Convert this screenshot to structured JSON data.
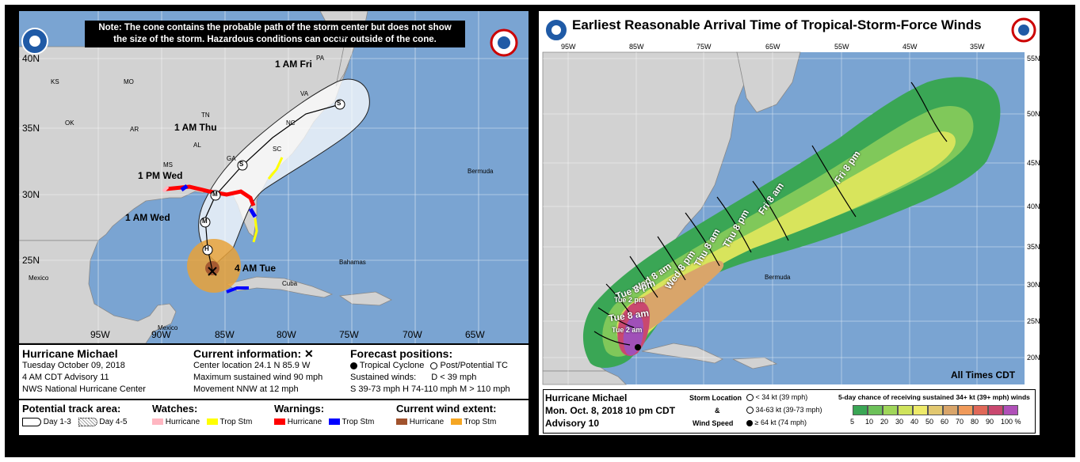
{
  "left": {
    "note_line1": "Note: The cone contains the probable path of the storm center but does not show",
    "note_line2": "the size of the storm. Hazardous conditions can occur outside of the cone.",
    "lat_labels": [
      "40N",
      "35N",
      "30N",
      "25N"
    ],
    "lon_labels": [
      "95W",
      "90W",
      "85W",
      "80W",
      "75W",
      "70W",
      "65W"
    ],
    "states": [
      "KS",
      "MO",
      "OK",
      "AR",
      "TN",
      "AL",
      "MS",
      "GA",
      "NC",
      "SC",
      "VA",
      "PA",
      "NY"
    ],
    "places": [
      "Bermuda",
      "Bahamas",
      "Cuba",
      "Mexico",
      "Mexico"
    ],
    "track_times": [
      "1 AM Fri",
      "1 AM Thu",
      "1 PM Wed",
      "1 AM Wed",
      "4 AM Tue"
    ],
    "track_markers": [
      "S",
      "S",
      "M",
      "M",
      "H"
    ],
    "storm_name": "Hurricane Michael",
    "date": "Tuesday October 09, 2018",
    "advisory": "4 AM CDT Advisory 11",
    "center": "NWS National Hurricane Center",
    "current_title": "Current information: ✕",
    "current_lines": [
      "Center location 24.1 N 85.9 W",
      "Maximum sustained wind 90 mph",
      "Movement NNW at 12 mph"
    ],
    "forecast_title": "Forecast positions:",
    "forecast_tc": "Tropical Cyclone",
    "forecast_post": "Post/Potential TC",
    "forecast_sustained": "Sustained winds:",
    "forecast_d": "D < 39 mph",
    "forecast_scale": "S 39-73 mph  H 74-110 mph  M > 110 mph",
    "track_area_title": "Potential track area:",
    "day13": "Day 1-3",
    "day45": "Day 4-5",
    "watches_title": "Watches:",
    "warnings_title": "Warnings:",
    "wind_title": "Current wind extent:",
    "hurricane": "Hurricane",
    "trop_stm": "Trop Stm",
    "colors": {
      "hurricane_warning": "#ff0000",
      "ts_warning": "#0000ff",
      "hurricane_watch": "#ffb6c1",
      "ts_watch": "#ffff00",
      "hurricane_wind": "#a0522d",
      "ts_wind": "#f5a623",
      "water": "#7aa4d2",
      "land": "#d2d2d2"
    }
  },
  "right": {
    "title": "Earliest Reasonable Arrival Time of Tropical-Storm-Force Winds",
    "lat_labels": [
      "55N",
      "50N",
      "45N",
      "40N",
      "35N",
      "30N",
      "25N",
      "20N"
    ],
    "lon_labels": [
      "95W",
      "85W",
      "75W",
      "65W",
      "55W",
      "45W",
      "35W"
    ],
    "time_labels": [
      "Fri 8 pm",
      "Fri 8 am",
      "Thu 8 pm",
      "Thu 8 am",
      "Wed 8 pm",
      "Wed 8 am",
      "Tue 8 pm",
      "Tue 2 pm",
      "Tue 8 am",
      "Tue 2 am"
    ],
    "places": [
      "Bermuda"
    ],
    "all_times": "All Times CDT",
    "storm_name": "Hurricane Michael",
    "date": "Mon. Oct. 8, 2018  10 pm CDT",
    "advisory": "Advisory 10",
    "storm_location": "Storm Location",
    "amp": "&",
    "wind_speed": "Wind Speed",
    "speed1": "< 34 kt (39 mph)",
    "speed2": "34-63 kt (39-73 mph)",
    "speed3": "≥ 64 kt (74 mph)",
    "chance_title": "5-day chance of receiving sustained 34+ kt (39+ mph) winds",
    "scale_labels": [
      "5",
      "10",
      "20",
      "30",
      "40",
      "50",
      "60",
      "70",
      "80",
      "90",
      "100 %"
    ],
    "scale_colors": [
      "#3aa655",
      "#6dc15a",
      "#a0d65a",
      "#cfe35c",
      "#eeea6a",
      "#e2c870",
      "#d9a56a",
      "#f09a5a",
      "#e06858",
      "#c9486f",
      "#b050b8"
    ]
  }
}
